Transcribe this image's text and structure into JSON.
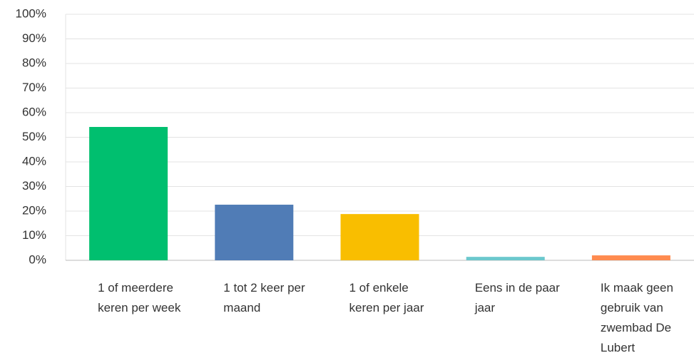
{
  "chart_data": {
    "type": "bar",
    "categories": [
      "1 of meerdere keren per week",
      "1 tot 2 keer per maand",
      "1 of enkele keren per jaar",
      "Eens in de paar jaar",
      "Ik maak geen gebruik van zwembad De Lubert"
    ],
    "values": [
      54.2,
      22.6,
      18.8,
      1.4,
      2.0
    ],
    "colors": [
      "#00bf6f",
      "#507cb6",
      "#f9be00",
      "#6bc8cd",
      "#ff8b4f"
    ],
    "ylim": [
      0,
      100
    ],
    "yticks": [
      {
        "value": 0,
        "label": "0%"
      },
      {
        "value": 10,
        "label": "10%"
      },
      {
        "value": 20,
        "label": "20%"
      },
      {
        "value": 30,
        "label": "30%"
      },
      {
        "value": 40,
        "label": "40%"
      },
      {
        "value": 50,
        "label": "50%"
      },
      {
        "value": 60,
        "label": "60%"
      },
      {
        "value": 70,
        "label": "70%"
      },
      {
        "value": 80,
        "label": "80%"
      },
      {
        "value": 90,
        "label": "90%"
      },
      {
        "value": 100,
        "label": "100%"
      }
    ],
    "grid": true
  }
}
